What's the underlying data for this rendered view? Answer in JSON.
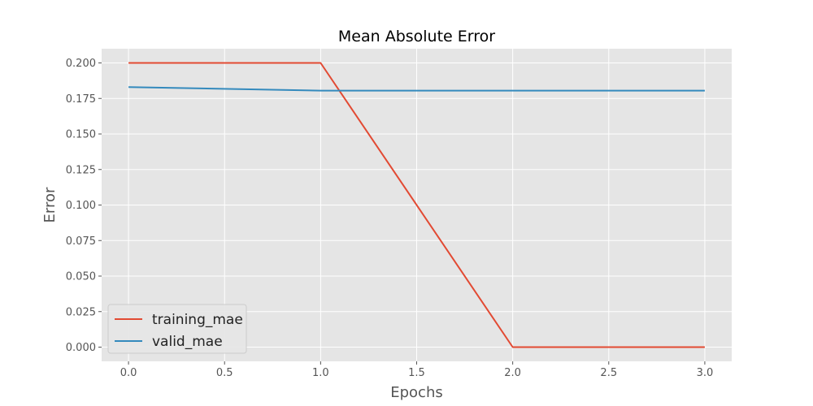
{
  "chart_data": {
    "type": "line",
    "title": "Mean Absolute Error",
    "xlabel": "Epochs",
    "ylabel": "Error",
    "xlim": [
      -0.14,
      3.14
    ],
    "ylim": [
      -0.01,
      0.21
    ],
    "xticks": [
      0.0,
      0.5,
      1.0,
      1.5,
      2.0,
      2.5,
      3.0
    ],
    "xtick_labels": [
      "0.0",
      "0.5",
      "1.0",
      "1.5",
      "2.0",
      "2.5",
      "3.0"
    ],
    "yticks": [
      0.0,
      0.025,
      0.05,
      0.075,
      0.1,
      0.125,
      0.15,
      0.175,
      0.2
    ],
    "ytick_labels": [
      "0.000",
      "0.025",
      "0.050",
      "0.075",
      "0.100",
      "0.125",
      "0.150",
      "0.175",
      "0.200"
    ],
    "grid": true,
    "legend_position": "lower-left",
    "background_color": "#e5e5e5",
    "series": [
      {
        "name": "training_mae",
        "color": "#e24a33",
        "x": [
          0,
          1,
          2,
          3
        ],
        "y": [
          0.2,
          0.2,
          0.0,
          0.0
        ]
      },
      {
        "name": "valid_mae",
        "color": "#348abd",
        "x": [
          0,
          1,
          2,
          3
        ],
        "y": [
          0.183,
          0.1805,
          0.1805,
          0.1805
        ]
      }
    ]
  }
}
